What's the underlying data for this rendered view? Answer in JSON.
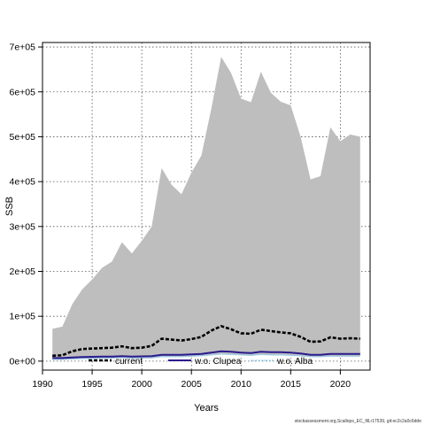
{
  "chart_data": {
    "type": "area",
    "xlabel": "Years",
    "ylabel": "SSB",
    "xlim": [
      1990,
      2023
    ],
    "ylim": [
      -20000,
      710000
    ],
    "x_ticks": [
      1990,
      1995,
      2000,
      2005,
      2010,
      2015,
      2020
    ],
    "y_ticks": [
      0,
      100000,
      200000,
      300000,
      400000,
      500000,
      600000,
      700000
    ],
    "y_tick_labels": [
      "0e+00",
      "1e+05",
      "2e+05",
      "3e+05",
      "4e+05",
      "5e+05",
      "6e+05",
      "7e+05"
    ],
    "grid": true,
    "legend_position": "bottom",
    "footer_text": "stockassessment.org,Scallops_EC_fill,r17539, git:ec2c2a0c6dde",
    "x": [
      1991,
      1992,
      1993,
      1994,
      1995,
      1996,
      1997,
      1998,
      1999,
      2000,
      2001,
      2002,
      2003,
      2004,
      2005,
      2006,
      2007,
      2008,
      2009,
      2010,
      2011,
      2012,
      2013,
      2014,
      2015,
      2016,
      2017,
      2018,
      2019,
      2020,
      2021,
      2022
    ],
    "band": {
      "color": "#bebebe",
      "upper": [
        72000,
        77000,
        127000,
        160000,
        182000,
        208000,
        222000,
        265000,
        240000,
        268000,
        300000,
        430000,
        393000,
        372000,
        420000,
        458000,
        562000,
        678000,
        642000,
        585000,
        577000,
        645000,
        598000,
        578000,
        570000,
        500000,
        405000,
        412000,
        521000,
        490000,
        505000,
        500000
      ],
      "lower": [
        3000,
        3000,
        4000,
        5000,
        5000,
        6000,
        6000,
        7000,
        6000,
        6000,
        6000,
        9000,
        9000,
        9000,
        10000,
        11000,
        13000,
        15000,
        14000,
        13000,
        12000,
        14000,
        13000,
        13000,
        12000,
        11000,
        9000,
        9000,
        10000,
        10000,
        10000,
        10000
      ]
    },
    "series": [
      {
        "name": "current",
        "color": "#000000",
        "style": "dashed-thick",
        "values": [
          12000,
          13000,
          22000,
          27000,
          28000,
          29000,
          30000,
          33000,
          29000,
          30000,
          34000,
          50000,
          48000,
          46000,
          49000,
          54000,
          68000,
          78000,
          71000,
          62000,
          61000,
          70000,
          67000,
          64000,
          62000,
          54000,
          43000,
          44000,
          53000,
          50000,
          51000,
          50000
        ]
      },
      {
        "name": "w.o. Clupea",
        "color": "#2a1a8c",
        "style": "solid",
        "values": [
          7000,
          7000,
          8000,
          9000,
          9500,
          10000,
          10000,
          11000,
          10000,
          10500,
          11000,
          14000,
          14000,
          14000,
          15000,
          16000,
          19000,
          22000,
          21000,
          19000,
          18000,
          21000,
          20000,
          20000,
          19000,
          17000,
          14000,
          14000,
          16000,
          16000,
          16000,
          16000
        ]
      },
      {
        "name": "w.o. Alba",
        "color": "#87cefa",
        "style": "dotted",
        "values": [
          4000,
          4000,
          5000,
          6000,
          6000,
          7000,
          7000,
          8000,
          7000,
          7000,
          8000,
          10000,
          10000,
          10000,
          11000,
          12000,
          14000,
          16000,
          15000,
          14000,
          13000,
          15000,
          14000,
          14000,
          13000,
          12000,
          10000,
          10000,
          11000,
          11000,
          11000,
          11000
        ]
      }
    ]
  }
}
